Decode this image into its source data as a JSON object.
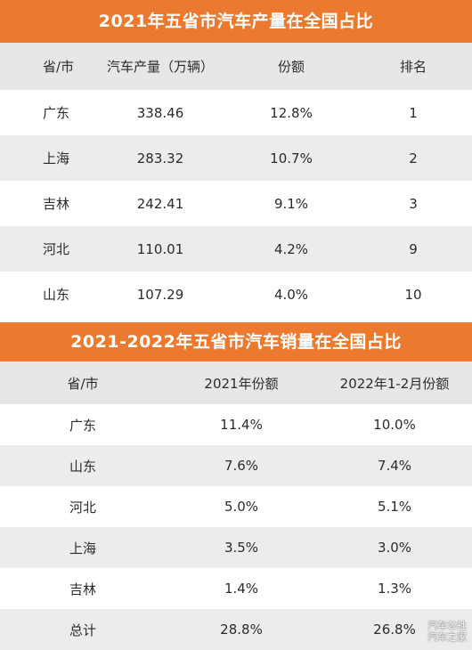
{
  "table1": {
    "title": "2021年五省市汽车产量在全国占比",
    "headers": [
      "省/市",
      "汽车产量（万辆）",
      "份额",
      "排名"
    ],
    "rows": [
      [
        "广东",
        "338.46",
        "12.8%",
        "1"
      ],
      [
        "上海",
        "283.32",
        "10.7%",
        "2"
      ],
      [
        "吉林",
        "242.41",
        "9.1%",
        "3"
      ],
      [
        "河北",
        "110.01",
        "4.2%",
        "9"
      ],
      [
        "山东",
        "107.29",
        "4.0%",
        "10"
      ]
    ]
  },
  "table2": {
    "title": "2021-2022年五省市汽车销量在全国占比",
    "headers": [
      "省/市",
      "2021年份额",
      "2022年1-2月份额"
    ],
    "rows": [
      [
        "广东",
        "11.4%",
        "10.0%"
      ],
      [
        "山东",
        "7.6%",
        "7.4%"
      ],
      [
        "河北",
        "5.0%",
        "5.1%"
      ],
      [
        "上海",
        "3.5%",
        "3.0%"
      ],
      [
        "吉林",
        "1.4%",
        "1.3%"
      ],
      [
        "总计",
        "28.8%",
        "26.8%"
      ]
    ]
  },
  "watermark": {
    "line1": "汽车公社",
    "line2": "汽车之家"
  }
}
